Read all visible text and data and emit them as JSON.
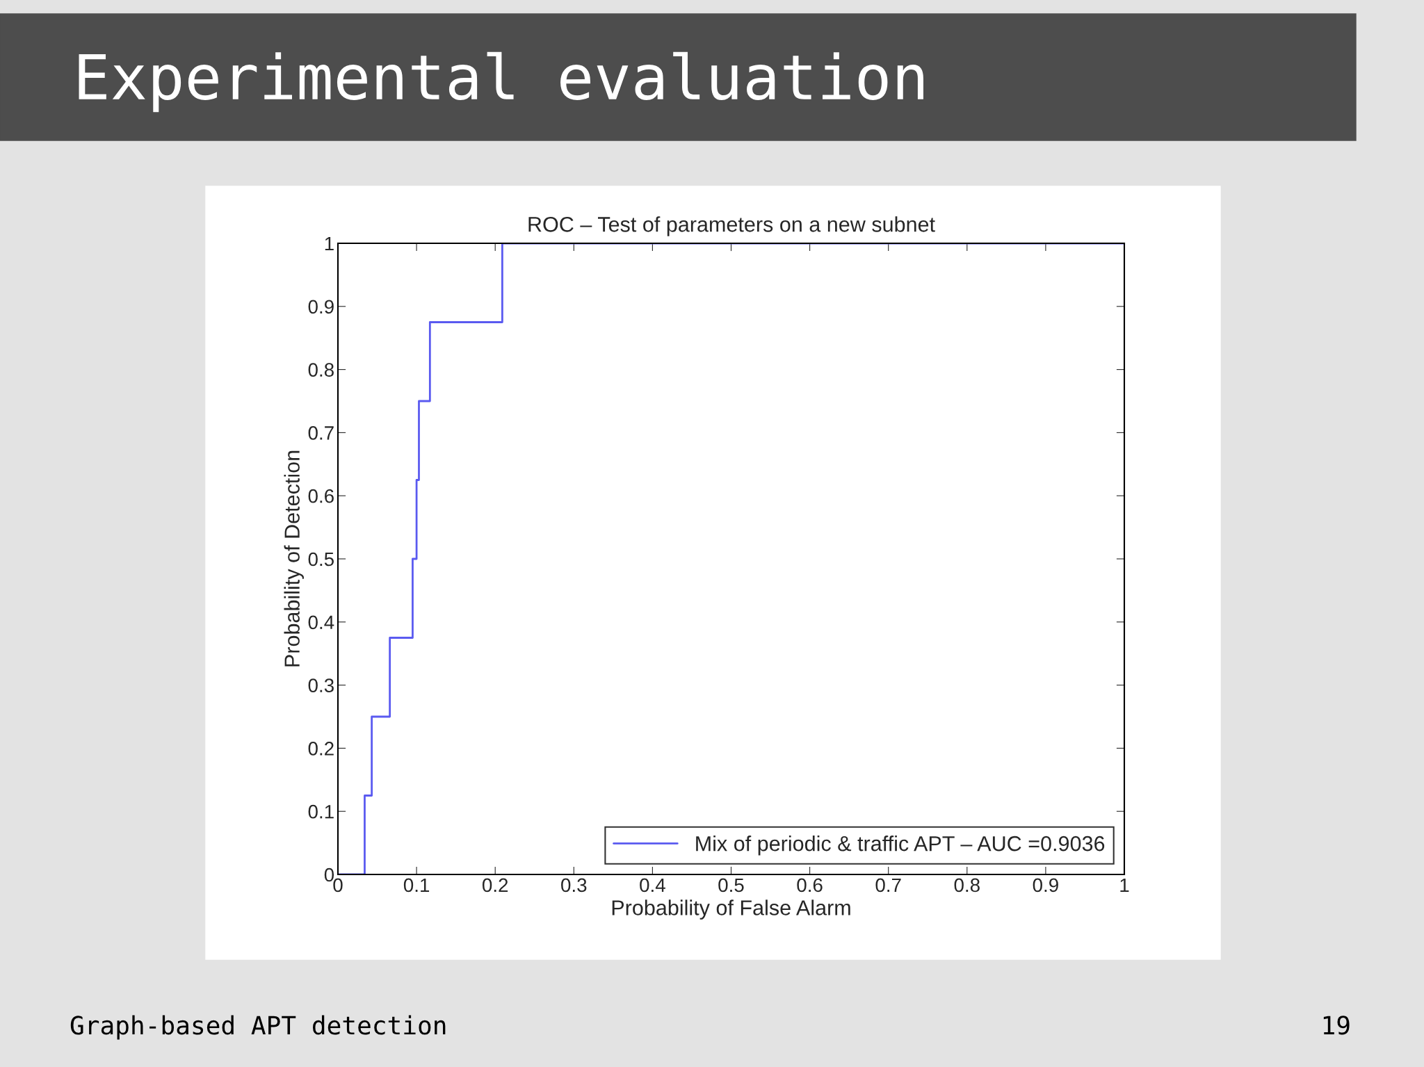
{
  "chart_data": {
    "type": "step",
    "title": "ROC – Test of parameters on a new subnet",
    "xlabel": "Probability of False Alarm",
    "ylabel": "Probability of Detection",
    "annotations": [
      "Experimental evaluation",
      "Graph-based APT detection",
      "19"
    ],
    "x": [
      0,
      0.034,
      0.043,
      0.066,
      0.095,
      0.1,
      0.103,
      0.117,
      0.209,
      1
    ],
    "series": [
      {
        "name": "Mix of periodic & traffic APT – AUC =0.9036",
        "color": "#5a5af0",
        "values": [
          0,
          0.125,
          0.25,
          0.375,
          0.5,
          0.625,
          0.75,
          0.875,
          1,
          1
        ]
      }
    ],
    "xlim": [
      0,
      1
    ],
    "ylim": [
      0,
      1
    ],
    "xticks": [
      0,
      0.1,
      0.2,
      0.3,
      0.4,
      0.5,
      0.6,
      0.7,
      0.8,
      0.9,
      1
    ],
    "yticks": [
      0,
      0.1,
      0.2,
      0.3,
      0.4,
      0.5,
      0.6,
      0.7,
      0.8,
      0.9,
      1
    ],
    "grid": false,
    "legend": "bottom right",
    "line_style": "solid"
  }
}
